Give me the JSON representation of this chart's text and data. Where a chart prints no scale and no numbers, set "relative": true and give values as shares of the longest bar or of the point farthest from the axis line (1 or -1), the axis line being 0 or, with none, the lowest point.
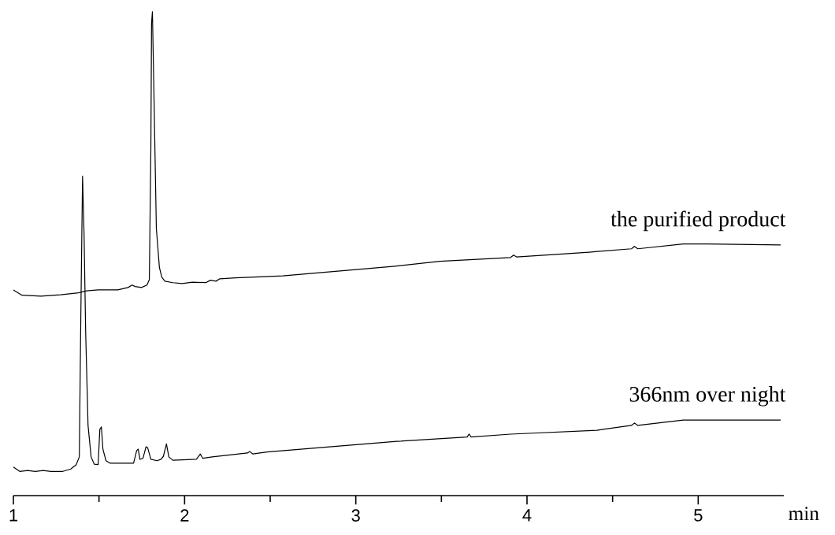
{
  "chart_data": {
    "type": "line",
    "xlabel": "min",
    "relative": true,
    "xlim": [
      1,
      5.5
    ],
    "xticks": [
      1,
      {
        "value": 1.5,
        "label": null
      },
      2,
      {
        "value": 2.5,
        "label": null
      },
      3,
      {
        "value": 3.5,
        "label": null
      },
      4,
      {
        "value": 4.5,
        "label": null
      },
      5
    ],
    "grid": false,
    "marker": "none",
    "line_style": "solid",
    "series": [
      {
        "name": "the purified product",
        "color": "#000000",
        "x": [
          1.0,
          1.05,
          1.161,
          1.275,
          1.381,
          1.427,
          1.495,
          1.61,
          1.67,
          1.693,
          1.711,
          1.748,
          1.78,
          1.794,
          1.803,
          1.807,
          1.812,
          1.821,
          1.835,
          1.853,
          1.867,
          1.885,
          1.931,
          1.986,
          2.046,
          2.124,
          2.151,
          2.183,
          2.206,
          2.298,
          2.573,
          3.229,
          3.491,
          3.904,
          3.922,
          3.94,
          4.362,
          4.61,
          4.628,
          4.647,
          4.913,
          5.05,
          5.482
        ],
        "values": [
          0.425,
          0.414,
          0.412,
          0.415,
          0.419,
          0.423,
          0.425,
          0.425,
          0.43,
          0.435,
          0.432,
          0.43,
          0.435,
          0.446,
          0.718,
          0.976,
          1.0,
          0.829,
          0.552,
          0.471,
          0.451,
          0.443,
          0.44,
          0.438,
          0.441,
          0.44,
          0.445,
          0.443,
          0.448,
          0.45,
          0.454,
          0.474,
          0.484,
          0.492,
          0.497,
          0.493,
          0.503,
          0.51,
          0.515,
          0.51,
          0.52,
          0.52,
          0.518
        ]
      },
      {
        "name": "366nm over night",
        "color": "#000000",
        "x": [
          1.0,
          1.037,
          1.083,
          1.128,
          1.174,
          1.22,
          1.289,
          1.335,
          1.367,
          1.385,
          1.394,
          1.404,
          1.413,
          1.422,
          1.436,
          1.454,
          1.472,
          1.495,
          1.505,
          1.514,
          1.523,
          1.541,
          1.564,
          1.702,
          1.72,
          1.729,
          1.739,
          1.757,
          1.775,
          1.784,
          1.803,
          1.839,
          1.862,
          1.876,
          1.894,
          1.908,
          1.931,
          2.069,
          2.092,
          2.106,
          2.161,
          2.367,
          2.381,
          2.399,
          2.482,
          3.239,
          3.651,
          3.661,
          3.674,
          3.904,
          4.408,
          4.61,
          4.628,
          4.647,
          4.913,
          5.482
        ],
        "values": [
          0.059,
          0.05,
          0.052,
          0.05,
          0.052,
          0.05,
          0.05,
          0.055,
          0.064,
          0.08,
          0.373,
          0.66,
          0.536,
          0.34,
          0.145,
          0.08,
          0.065,
          0.064,
          0.137,
          0.142,
          0.096,
          0.072,
          0.067,
          0.067,
          0.093,
          0.096,
          0.075,
          0.077,
          0.101,
          0.099,
          0.075,
          0.072,
          0.075,
          0.081,
          0.107,
          0.08,
          0.073,
          0.075,
          0.086,
          0.077,
          0.08,
          0.088,
          0.091,
          0.086,
          0.09,
          0.112,
          0.121,
          0.127,
          0.121,
          0.127,
          0.135,
          0.145,
          0.15,
          0.145,
          0.156,
          0.156
        ]
      }
    ]
  }
}
